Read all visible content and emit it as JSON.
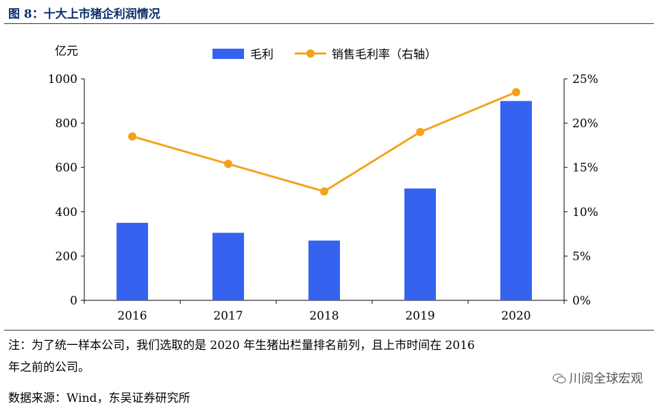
{
  "figure": {
    "title": "图 8：十大上市猪企利润情况",
    "note": "注：为了统一样本公司，我们选取的是 2020 年生猪出栏量排名前列，且上市时间在 2016 年之前的公司。",
    "note_line1": "注：为了统一样本公司，我们选取的是 2020 年生猪出栏量排名前列，且上市时间在 2016",
    "note_line2": "年之前的公司。",
    "source": "数据来源：Wind，东吴证券研究所",
    "watermark": "川阅全球宏观"
  },
  "chart_data": {
    "type": "bar",
    "categories": [
      "2016",
      "2017",
      "2018",
      "2019",
      "2020"
    ],
    "series": [
      {
        "name": "毛利",
        "type": "bar",
        "axis": "left",
        "color": "#3563f0",
        "values": [
          350,
          305,
          270,
          505,
          900
        ]
      },
      {
        "name": "销售毛利率（右轴）",
        "type": "line",
        "axis": "right",
        "color": "#f5a21b",
        "values": [
          18.5,
          15.4,
          12.3,
          19.0,
          23.5
        ]
      }
    ],
    "ylabel": "亿元",
    "ylim": [
      0,
      1000
    ],
    "yticks": [
      "0",
      "200",
      "400",
      "600",
      "800",
      "1000"
    ],
    "y2lim": [
      0,
      25
    ],
    "y2ticks": [
      "0%",
      "5%",
      "10%",
      "15%",
      "20%",
      "25%"
    ],
    "legend_position": "top",
    "grid": false
  }
}
